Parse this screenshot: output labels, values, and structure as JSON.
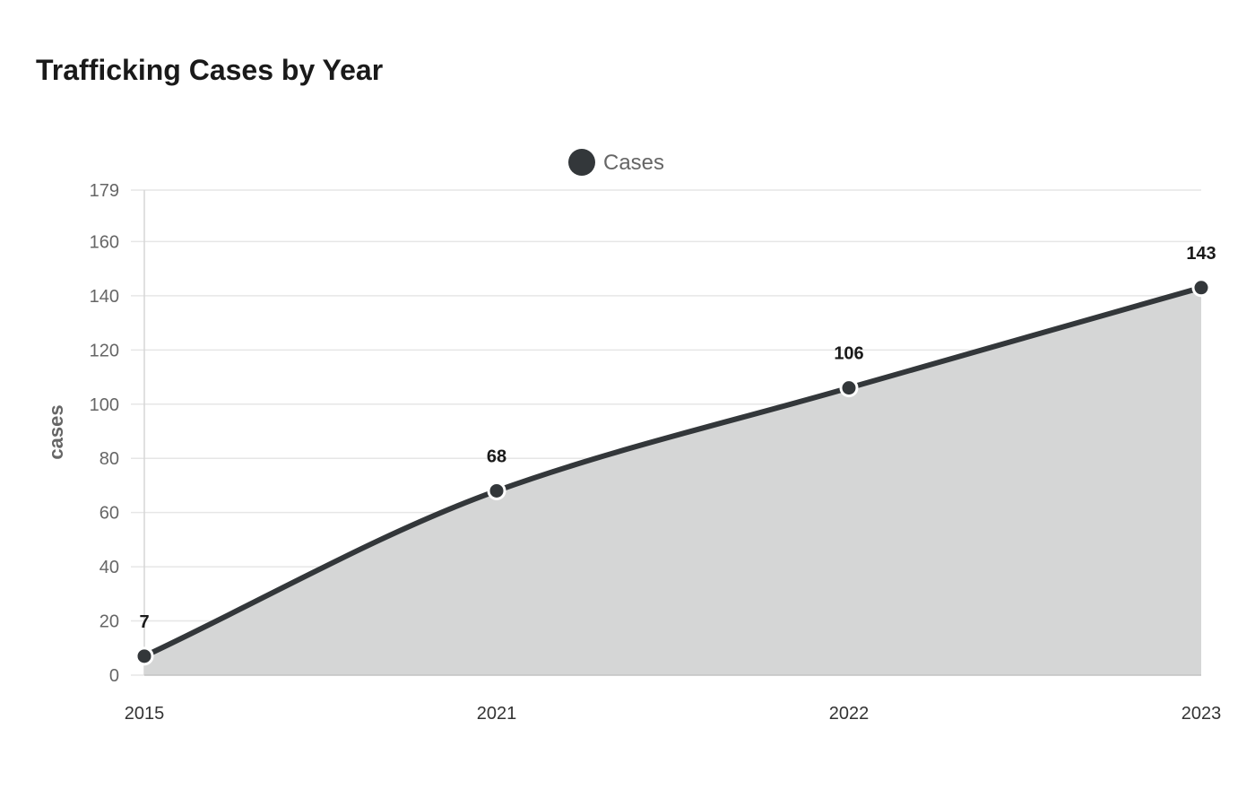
{
  "chart_data": {
    "type": "area",
    "title": "Trafficking Cases by Year",
    "xlabel": "",
    "ylabel": "cases",
    "categories": [
      "2015",
      "2021",
      "2022",
      "2023"
    ],
    "series": [
      {
        "name": "Cases",
        "values": [
          7,
          68,
          106,
          143
        ],
        "color": "#33373a",
        "fill": "#d5d6d6"
      }
    ],
    "data_labels": [
      "7",
      "68",
      "106",
      "143"
    ],
    "ylim": [
      0,
      179
    ],
    "yticks": [
      0,
      20,
      40,
      60,
      80,
      100,
      120,
      140,
      160,
      179
    ],
    "grid": true,
    "legend": "top-center"
  }
}
